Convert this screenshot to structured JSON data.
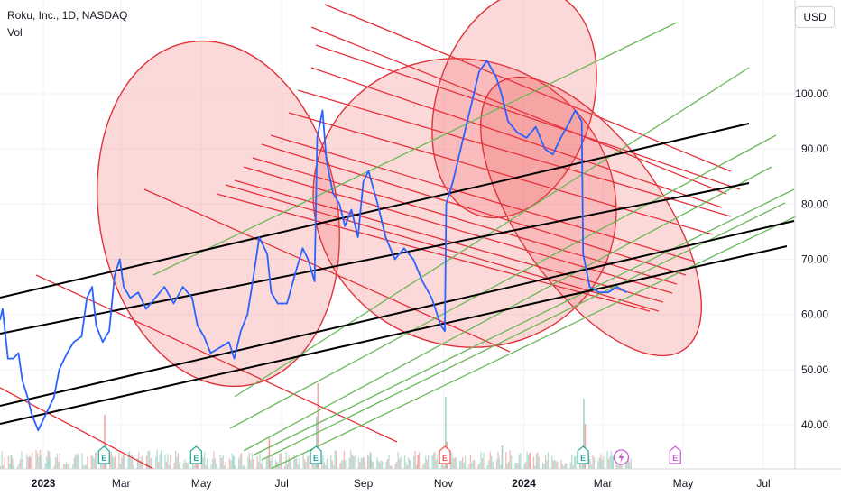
{
  "header": {
    "symbol_line": "Roku, Inc., 1D, NASDAQ",
    "indicator": "Vol",
    "currency": "USD"
  },
  "colors": {
    "price_line": "#2962ff",
    "red_line": "#e5323c",
    "green_line": "#6cb85c",
    "black_line": "#000000",
    "ellipse_fill": "rgba(240,80,80,0.22)",
    "ellipse_stroke": "#e0333b",
    "volume_up": "#9fd6c8",
    "volume_down": "#f2a7a4",
    "earnings_green": "#26a69a",
    "earnings_red": "#ef5350",
    "earnings_purple": "#c85fcf"
  },
  "chart_data": {
    "type": "line",
    "title": "",
    "xlabel": "",
    "ylabel": "",
    "ylim": [
      32,
      117
    ],
    "y_ticks": [
      40,
      50,
      60,
      70,
      80,
      90,
      100
    ],
    "x_range": [
      "2022-11-29",
      "2024-07-25"
    ],
    "x_ticks": [
      {
        "label": "2023",
        "date": "2023-01-01",
        "bold": true
      },
      {
        "label": "Mar",
        "date": "2023-03-01",
        "bold": false
      },
      {
        "label": "May",
        "date": "2023-05-01",
        "bold": false
      },
      {
        "label": "Jul",
        "date": "2023-07-01",
        "bold": false
      },
      {
        "label": "Sep",
        "date": "2023-09-01",
        "bold": false
      },
      {
        "label": "Nov",
        "date": "2023-11-01",
        "bold": false
      },
      {
        "label": "2024",
        "date": "2024-01-01",
        "bold": true
      },
      {
        "label": "Mar",
        "date": "2024-03-01",
        "bold": false
      },
      {
        "label": "May",
        "date": "2024-05-01",
        "bold": false
      },
      {
        "label": "Jul",
        "date": "2024-07-01",
        "bold": false
      }
    ],
    "series": [
      {
        "values": [
          [
            "2022-11-29",
            59
          ],
          [
            "2022-12-01",
            61
          ],
          [
            "2022-12-05",
            52
          ],
          [
            "2022-12-09",
            52
          ],
          [
            "2022-12-13",
            53
          ],
          [
            "2022-12-16",
            48
          ],
          [
            "2022-12-20",
            45
          ],
          [
            "2022-12-23",
            42
          ],
          [
            "2022-12-28",
            39
          ],
          [
            "2023-01-03",
            42
          ],
          [
            "2023-01-09",
            45
          ],
          [
            "2023-01-13",
            50
          ],
          [
            "2023-01-19",
            53
          ],
          [
            "2023-01-24",
            55
          ],
          [
            "2023-01-30",
            56
          ],
          [
            "2023-02-03",
            63
          ],
          [
            "2023-02-07",
            65
          ],
          [
            "2023-02-10",
            58
          ],
          [
            "2023-02-15",
            55
          ],
          [
            "2023-02-20",
            57
          ],
          [
            "2023-02-24",
            67
          ],
          [
            "2023-02-28",
            70
          ],
          [
            "2023-03-03",
            65
          ],
          [
            "2023-03-08",
            63
          ],
          [
            "2023-03-14",
            64
          ],
          [
            "2023-03-20",
            61
          ],
          [
            "2023-03-27",
            63
          ],
          [
            "2023-04-03",
            65
          ],
          [
            "2023-04-10",
            62
          ],
          [
            "2023-04-17",
            65
          ],
          [
            "2023-04-24",
            63
          ],
          [
            "2023-04-28",
            58
          ],
          [
            "2023-05-03",
            56
          ],
          [
            "2023-05-08",
            53
          ],
          [
            "2023-05-15",
            54
          ],
          [
            "2023-05-22",
            55
          ],
          [
            "2023-05-26",
            52
          ],
          [
            "2023-05-31",
            57
          ],
          [
            "2023-06-05",
            60
          ],
          [
            "2023-06-09",
            66
          ],
          [
            "2023-06-14",
            74
          ],
          [
            "2023-06-20",
            71
          ],
          [
            "2023-06-23",
            64
          ],
          [
            "2023-06-28",
            62
          ],
          [
            "2023-07-05",
            62
          ],
          [
            "2023-07-12",
            68
          ],
          [
            "2023-07-17",
            72
          ],
          [
            "2023-07-21",
            70
          ],
          [
            "2023-07-26",
            66
          ],
          [
            "2023-07-28",
            92
          ],
          [
            "2023-08-01",
            97
          ],
          [
            "2023-08-04",
            88
          ],
          [
            "2023-08-09",
            82
          ],
          [
            "2023-08-14",
            80
          ],
          [
            "2023-08-18",
            76
          ],
          [
            "2023-08-23",
            79
          ],
          [
            "2023-08-28",
            74
          ],
          [
            "2023-09-01",
            84
          ],
          [
            "2023-09-05",
            86
          ],
          [
            "2023-09-12",
            80
          ],
          [
            "2023-09-18",
            74
          ],
          [
            "2023-09-25",
            70
          ],
          [
            "2023-10-02",
            72
          ],
          [
            "2023-10-09",
            70
          ],
          [
            "2023-10-16",
            66
          ],
          [
            "2023-10-23",
            63
          ],
          [
            "2023-10-30",
            58
          ],
          [
            "2023-11-02",
            57
          ],
          [
            "2023-11-03",
            80
          ],
          [
            "2023-11-08",
            84
          ],
          [
            "2023-11-14",
            90
          ],
          [
            "2023-11-20",
            96
          ],
          [
            "2023-11-28",
            104
          ],
          [
            "2023-12-04",
            106
          ],
          [
            "2023-12-11",
            103
          ],
          [
            "2023-12-15",
            100
          ],
          [
            "2023-12-20",
            95
          ],
          [
            "2023-12-27",
            93
          ],
          [
            "2024-01-03",
            92
          ],
          [
            "2024-01-10",
            94
          ],
          [
            "2024-01-17",
            90
          ],
          [
            "2024-01-23",
            89
          ],
          [
            "2024-01-29",
            92
          ],
          [
            "2024-02-05",
            95
          ],
          [
            "2024-02-09",
            97
          ],
          [
            "2024-02-14",
            95
          ],
          [
            "2024-02-15",
            71
          ],
          [
            "2024-02-20",
            65
          ],
          [
            "2024-02-27",
            64
          ],
          [
            "2024-03-05",
            64
          ],
          [
            "2024-03-12",
            65
          ],
          [
            "2024-03-19",
            64
          ]
        ]
      }
    ],
    "volume": [
      [
        "2022-12-07",
        16
      ],
      [
        "2022-12-21",
        12
      ],
      [
        "2023-01-04",
        10
      ],
      [
        "2023-02-16",
        60
      ],
      [
        "2023-02-17",
        28
      ],
      [
        "2023-04-27",
        20
      ],
      [
        "2023-05-25",
        14
      ],
      [
        "2023-06-21",
        34
      ],
      [
        "2023-07-27",
        58
      ],
      [
        "2023-07-28",
        95
      ],
      [
        "2023-09-06",
        18
      ],
      [
        "2023-10-12",
        16
      ],
      [
        "2023-11-02",
        80
      ],
      [
        "2023-11-03",
        30
      ],
      [
        "2023-12-15",
        26
      ],
      [
        "2024-01-05",
        18
      ],
      [
        "2024-02-15",
        78
      ],
      [
        "2024-02-16",
        50
      ],
      [
        "2024-03-08",
        14
      ]
    ],
    "earnings_markers": [
      {
        "date": "2023-02-16",
        "letter": "E",
        "kind": "green"
      },
      {
        "date": "2023-04-27",
        "letter": "E",
        "kind": "green"
      },
      {
        "date": "2023-07-27",
        "letter": "E",
        "kind": "green"
      },
      {
        "date": "2023-11-02",
        "letter": "E",
        "kind": "red"
      },
      {
        "date": "2024-02-15",
        "letter": "E",
        "kind": "green"
      },
      {
        "date": "2024-04-25",
        "letter": "E",
        "kind": "purple"
      }
    ],
    "split_marker": {
      "date": "2024-03-15",
      "kind": "purple"
    }
  }
}
